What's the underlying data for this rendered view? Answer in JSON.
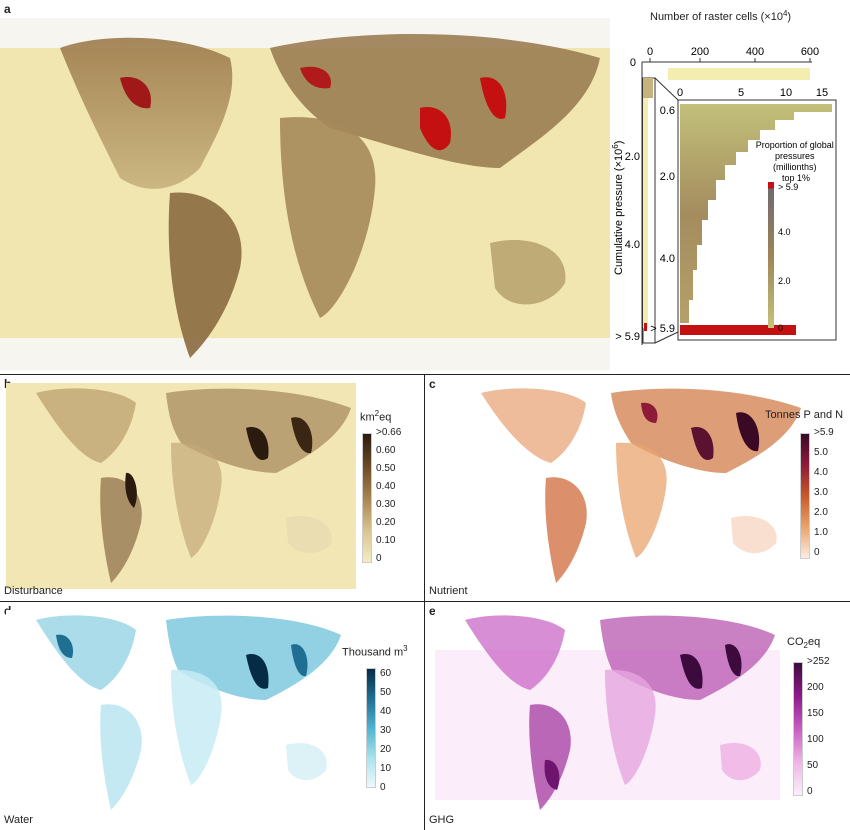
{
  "panel_a": {
    "label": "a",
    "top_axis_label": "Number of raster cells (×10",
    "top_axis_sup": "4",
    "top_axis_close": ")",
    "top_ticks": [
      "0",
      "200",
      "400",
      "600"
    ],
    "left_axis_label": "Cumulative pressure (×10",
    "left_axis_sup": "6",
    "left_axis_close": ")",
    "left_ticks": [
      "0",
      "2.0",
      "4.0",
      "> 5.9"
    ],
    "inset_top_ticks": [
      "0",
      "5",
      "10",
      "15"
    ],
    "inset_left_ticks": [
      "0.6",
      "2.0",
      "4.0",
      "> 5.9"
    ],
    "legend_title_lines": [
      "Proportion of global",
      "pressures",
      "(millionths)",
      "top 1%"
    ],
    "legend_ticks": [
      "> 5.9",
      "4.0",
      "2.0",
      "0"
    ]
  },
  "panel_b": {
    "label": "b",
    "name": "Disturbance",
    "unit": "km",
    "unit_sup": "2",
    "unit_suffix": "eq",
    "ticks": [
      ">0.66",
      "0.60",
      "0.50",
      "0.40",
      "0.30",
      "0.20",
      "0.10",
      "0"
    ],
    "colors": [
      "#2b1a0e",
      "#6b4a25",
      "#a8834f",
      "#d9c38e",
      "#f3ecc0"
    ]
  },
  "panel_c": {
    "label": "c",
    "name": "Nutrient",
    "unit": "Tonnes P and N",
    "ticks": [
      ">5.9",
      "5.0",
      "4.0",
      "3.0",
      "2.0",
      "1.0",
      "0"
    ],
    "colors": [
      "#3a0a24",
      "#8e1a3a",
      "#c95a2a",
      "#e9a36b",
      "#fbece4"
    ]
  },
  "panel_d": {
    "label": "d",
    "name": "Water",
    "unit": "Thousand m",
    "unit_sup": "3",
    "ticks": [
      "60",
      "50",
      "40",
      "30",
      "20",
      "10",
      "0"
    ],
    "colors": [
      "#062c45",
      "#1f6f93",
      "#4fb3cf",
      "#a8e2ee",
      "#eef9fb"
    ]
  },
  "panel_e": {
    "label": "e",
    "name": "GHG",
    "unit": "CO",
    "unit_sub": "2",
    "unit_suffix": "eq",
    "ticks": [
      ">252",
      "200",
      "150",
      "100",
      "50",
      "0"
    ],
    "colors": [
      "#3d0a3e",
      "#8e1a8a",
      "#c85ec2",
      "#efb6e6",
      "#fbeefa"
    ]
  },
  "colors": {
    "map_base_a": "#f2e6b0",
    "land_mid_a": "#a99566",
    "hotspot_red": "#c41010",
    "bar_highlight": "#f4edb0"
  }
}
